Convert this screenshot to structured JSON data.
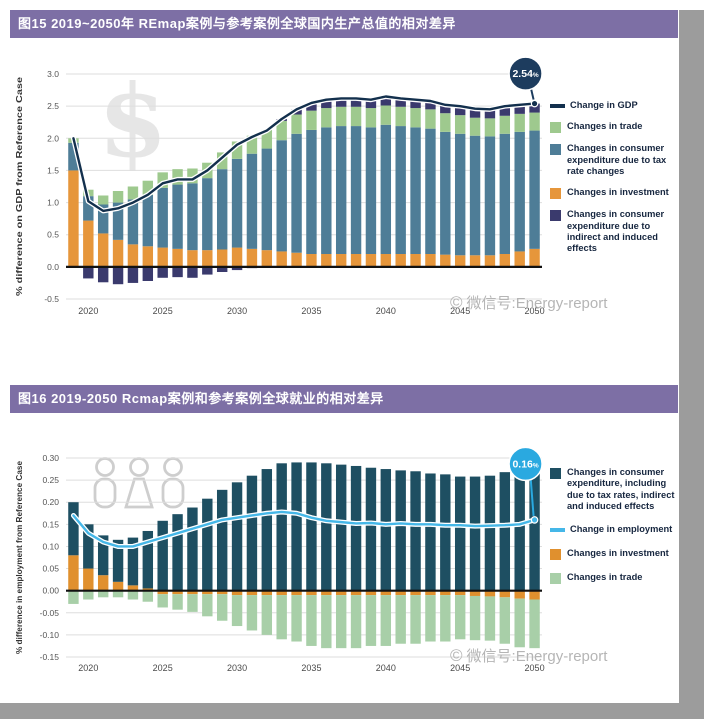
{
  "watermarks": {
    "wechat": "微信号:Energy-report",
    "copyright_symbol": "©",
    "dollar": "$"
  },
  "chart_data": [
    {
      "id": "gdp-difference",
      "type": "bar",
      "title": "图15 2019~2050年 REmap案例与参考案例全球国内生产总值的相对差异",
      "ylabel": "% difference on GDP from Reference Case",
      "ylim": [
        -0.5,
        3.0
      ],
      "ystep": 0.5,
      "tick_decimals": 1,
      "grid": true,
      "legend_position": "right",
      "years": [
        2019,
        2020,
        2021,
        2022,
        2023,
        2024,
        2025,
        2026,
        2027,
        2028,
        2029,
        2030,
        2031,
        2032,
        2033,
        2034,
        2035,
        2036,
        2037,
        2038,
        2039,
        2040,
        2041,
        2042,
        2043,
        2044,
        2045,
        2046,
        2047,
        2048,
        2049,
        2050
      ],
      "xticks": [
        2020,
        2025,
        2030,
        2035,
        2040,
        2045,
        2050
      ],
      "series": [
        {
          "name": "Changes in investment",
          "color": "#e6963b",
          "values": [
            1.5,
            0.72,
            0.52,
            0.42,
            0.35,
            0.32,
            0.3,
            0.28,
            0.26,
            0.26,
            0.27,
            0.3,
            0.28,
            0.26,
            0.24,
            0.22,
            0.2,
            0.2,
            0.2,
            0.2,
            0.2,
            0.2,
            0.2,
            0.2,
            0.2,
            0.19,
            0.18,
            0.18,
            0.18,
            0.2,
            0.24,
            0.28
          ]
        },
        {
          "name": "Changes in consumer expenditure due to tax rate changes",
          "color": "#4e7d97",
          "values": [
            0.43,
            0.38,
            0.45,
            0.58,
            0.7,
            0.8,
            0.93,
            1.0,
            1.04,
            1.12,
            1.25,
            1.38,
            1.48,
            1.58,
            1.73,
            1.85,
            1.93,
            1.97,
            1.99,
            1.99,
            1.97,
            2.01,
            1.99,
            1.97,
            1.95,
            1.91,
            1.89,
            1.86,
            1.85,
            1.87,
            1.86,
            1.84
          ]
        },
        {
          "name": "Changes in trade",
          "color": "#9ec98e",
          "values": [
            0.07,
            0.1,
            0.14,
            0.18,
            0.2,
            0.22,
            0.24,
            0.24,
            0.23,
            0.24,
            0.26,
            0.27,
            0.28,
            0.29,
            0.3,
            0.3,
            0.3,
            0.3,
            0.3,
            0.3,
            0.3,
            0.3,
            0.3,
            0.3,
            0.3,
            0.29,
            0.29,
            0.28,
            0.28,
            0.28,
            0.28,
            0.28
          ]
        },
        {
          "name": "Changes in consumer expenditure due to indirect and induced effects",
          "color": "#3a3a6d",
          "values": [
            0,
            -0.18,
            -0.24,
            -0.27,
            -0.25,
            -0.22,
            -0.17,
            -0.16,
            -0.17,
            -0.12,
            -0.08,
            -0.05,
            -0.02,
            -0.01,
            0.03,
            0.08,
            0.12,
            0.13,
            0.13,
            0.13,
            0.13,
            0.14,
            0.13,
            0.13,
            0.13,
            0.13,
            0.14,
            0.14,
            0.14,
            0.15,
            0.14,
            0.14
          ]
        }
      ],
      "line": {
        "name": "Change in GDP",
        "color": "#13304d",
        "values": [
          2.0,
          1.02,
          0.87,
          0.91,
          1.0,
          1.12,
          1.3,
          1.36,
          1.36,
          1.5,
          1.7,
          1.9,
          2.02,
          2.12,
          2.3,
          2.45,
          2.55,
          2.6,
          2.62,
          2.62,
          2.6,
          2.65,
          2.62,
          2.6,
          2.58,
          2.52,
          2.5,
          2.46,
          2.45,
          2.5,
          2.52,
          2.54
        ]
      },
      "callout": {
        "value": "2.54",
        "unit": "%",
        "color": "#1d3c5e"
      },
      "legend": [
        {
          "type": "line",
          "label": "Change in GDP",
          "color": "#13304d"
        },
        {
          "type": "swatch",
          "label": "Changes in trade",
          "color": "#9ec98e"
        },
        {
          "type": "swatch",
          "label": "Changes in consumer expenditure due to tax rate changes",
          "color": "#4e7d97"
        },
        {
          "type": "swatch",
          "label": "Changes in investment",
          "color": "#e6963b"
        },
        {
          "type": "swatch",
          "label": "Changes in consumer expenditure due to indirect and induced effects",
          "color": "#3a3a6d"
        }
      ]
    },
    {
      "id": "employment-difference",
      "type": "bar",
      "title": "图16  2019-2050 Rcmap案例和参考案例全球就业的相对差异",
      "ylabel": "% difference in employment from Reference Case",
      "ylim": [
        -0.15,
        0.3
      ],
      "ystep": 0.05,
      "tick_decimals": 2,
      "grid": true,
      "legend_position": "right",
      "years": [
        2019,
        2020,
        2021,
        2022,
        2023,
        2024,
        2025,
        2026,
        2027,
        2028,
        2029,
        2030,
        2031,
        2032,
        2033,
        2034,
        2035,
        2036,
        2037,
        2038,
        2039,
        2040,
        2041,
        2042,
        2043,
        2044,
        2045,
        2046,
        2047,
        2048,
        2049,
        2050
      ],
      "xticks": [
        2020,
        2025,
        2030,
        2035,
        2040,
        2045,
        2050
      ],
      "series": [
        {
          "name": "Changes in investment",
          "color": "#e0902e",
          "values": [
            0.08,
            0.05,
            0.035,
            0.02,
            0.012,
            0.005,
            -0.008,
            -0.008,
            -0.008,
            -0.008,
            -0.008,
            -0.01,
            -0.01,
            -0.01,
            -0.01,
            -0.01,
            -0.01,
            -0.01,
            -0.01,
            -0.01,
            -0.01,
            -0.01,
            -0.01,
            -0.01,
            -0.01,
            -0.01,
            -0.01,
            -0.012,
            -0.013,
            -0.015,
            -0.018,
            -0.02
          ]
        },
        {
          "name": "Changes in consumer expenditure, including due to tax rates, indirect and induced effects",
          "color": "#1e4f62",
          "values": [
            0.12,
            0.1,
            0.09,
            0.095,
            0.108,
            0.13,
            0.158,
            0.173,
            0.188,
            0.208,
            0.228,
            0.245,
            0.26,
            0.275,
            0.288,
            0.29,
            0.29,
            0.288,
            0.285,
            0.282,
            0.278,
            0.275,
            0.272,
            0.27,
            0.265,
            0.263,
            0.258,
            0.258,
            0.26,
            0.268,
            0.278,
            0.29
          ]
        },
        {
          "name": "Changes in trade",
          "color": "#a8cfa8",
          "values": [
            -0.03,
            -0.02,
            -0.015,
            -0.015,
            -0.02,
            -0.025,
            -0.03,
            -0.035,
            -0.04,
            -0.05,
            -0.06,
            -0.07,
            -0.08,
            -0.09,
            -0.1,
            -0.105,
            -0.115,
            -0.12,
            -0.12,
            -0.12,
            -0.115,
            -0.115,
            -0.11,
            -0.11,
            -0.105,
            -0.105,
            -0.1,
            -0.1,
            -0.1,
            -0.105,
            -0.11,
            -0.11
          ]
        }
      ],
      "line": {
        "name": "Change in employment",
        "color": "#45b7e8",
        "values": [
          0.17,
          0.13,
          0.11,
          0.1,
          0.1,
          0.11,
          0.12,
          0.13,
          0.14,
          0.15,
          0.16,
          0.165,
          0.17,
          0.175,
          0.178,
          0.175,
          0.165,
          0.158,
          0.155,
          0.152,
          0.153,
          0.15,
          0.152,
          0.15,
          0.15,
          0.148,
          0.148,
          0.146,
          0.147,
          0.148,
          0.15,
          0.16
        ]
      },
      "callout": {
        "value": "0.16",
        "unit": "%",
        "color": "#2aa9e0"
      },
      "legend": [
        {
          "type": "swatch",
          "label": "Changes in consumer expenditure, including due to tax rates, indirect and induced effects",
          "color": "#1e4f62"
        },
        {
          "type": "line",
          "label": "Change in employment",
          "color": "#45b7e8"
        },
        {
          "type": "swatch",
          "label": "Changes in investment",
          "color": "#e0902e"
        },
        {
          "type": "swatch",
          "label": "Changes in trade",
          "color": "#a8cfa8"
        }
      ]
    }
  ]
}
